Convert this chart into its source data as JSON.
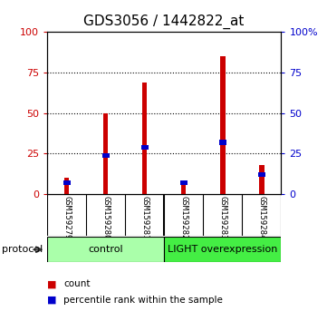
{
  "title": "GDS3056 / 1442822_at",
  "samples": [
    "GSM159279",
    "GSM159280",
    "GSM159281",
    "GSM159282",
    "GSM159283",
    "GSM159284"
  ],
  "count_values": [
    10,
    50,
    69,
    8,
    85,
    18
  ],
  "percentile_values": [
    7,
    24,
    29,
    7,
    32,
    12
  ],
  "groups": [
    {
      "label": "control",
      "indices": [
        0,
        1,
        2
      ],
      "color": "#aaffaa"
    },
    {
      "label": "LIGHT overexpression",
      "indices": [
        3,
        4,
        5
      ],
      "color": "#44ee44"
    }
  ],
  "left_yticks": [
    0,
    25,
    50,
    75,
    100
  ],
  "right_ylabels": [
    "0",
    "25",
    "50",
    "75",
    "100%"
  ],
  "ylim": [
    0,
    100
  ],
  "bar_width": 0.12,
  "count_color": "#cc0000",
  "percentile_color": "#0000cc",
  "left_tick_color": "#cc0000",
  "right_tick_color": "#0000cc",
  "plot_bg": "white",
  "label_bg": "#c8c8c8",
  "legend_items": [
    "count",
    "percentile rank within the sample"
  ],
  "protocol_label": "protocol",
  "title_fontsize": 11
}
